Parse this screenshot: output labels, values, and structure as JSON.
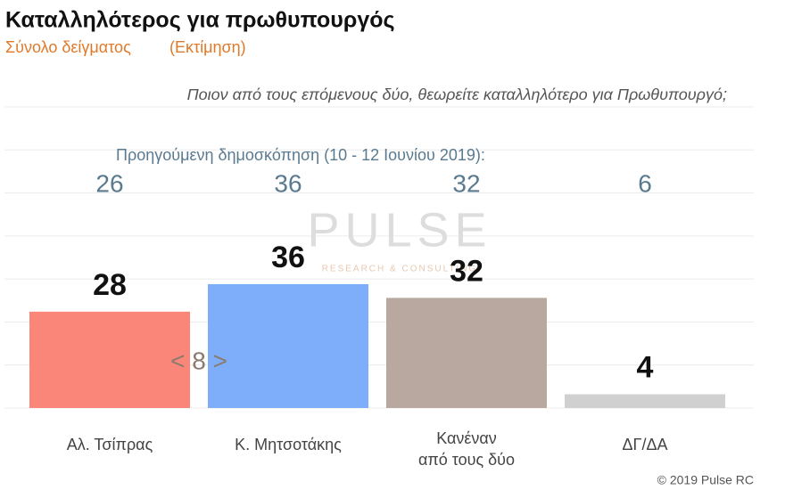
{
  "chart_data": {
    "type": "bar",
    "title": "Καταλληλότερος για πρωθυπουργός",
    "subtitle": "Σύνολο δείγματος",
    "subtitle_note": "(Εκτίμηση)",
    "question": "Ποιον από τους επόμενους δύο, θεωρείτε καταλληλότερο για Πρωθυπουργό;",
    "categories": [
      "Αλ. Τσίπρας",
      "Κ. Μητσοτάκης",
      [
        "Κανέναν",
        "από τους δύο"
      ],
      "ΔΓ/ΔΑ"
    ],
    "values": [
      28,
      36,
      32,
      4
    ],
    "colors": [
      "#f98679",
      "#7eaef9",
      "#b9a8a0",
      "#d0d0d0"
    ],
    "previous": {
      "label": "Προηγούμενη δημοσκόπηση (10 - 12 Ιουνίου 2019):",
      "values": [
        26,
        36,
        32,
        6
      ]
    },
    "gap_annotation": "< 8 >",
    "watermark": [
      "PULSE",
      "RESEARCH & CONSULTING"
    ],
    "credit": "© 2019 Pulse RC",
    "ylim": [
      0,
      87.5
    ],
    "grid": true
  }
}
